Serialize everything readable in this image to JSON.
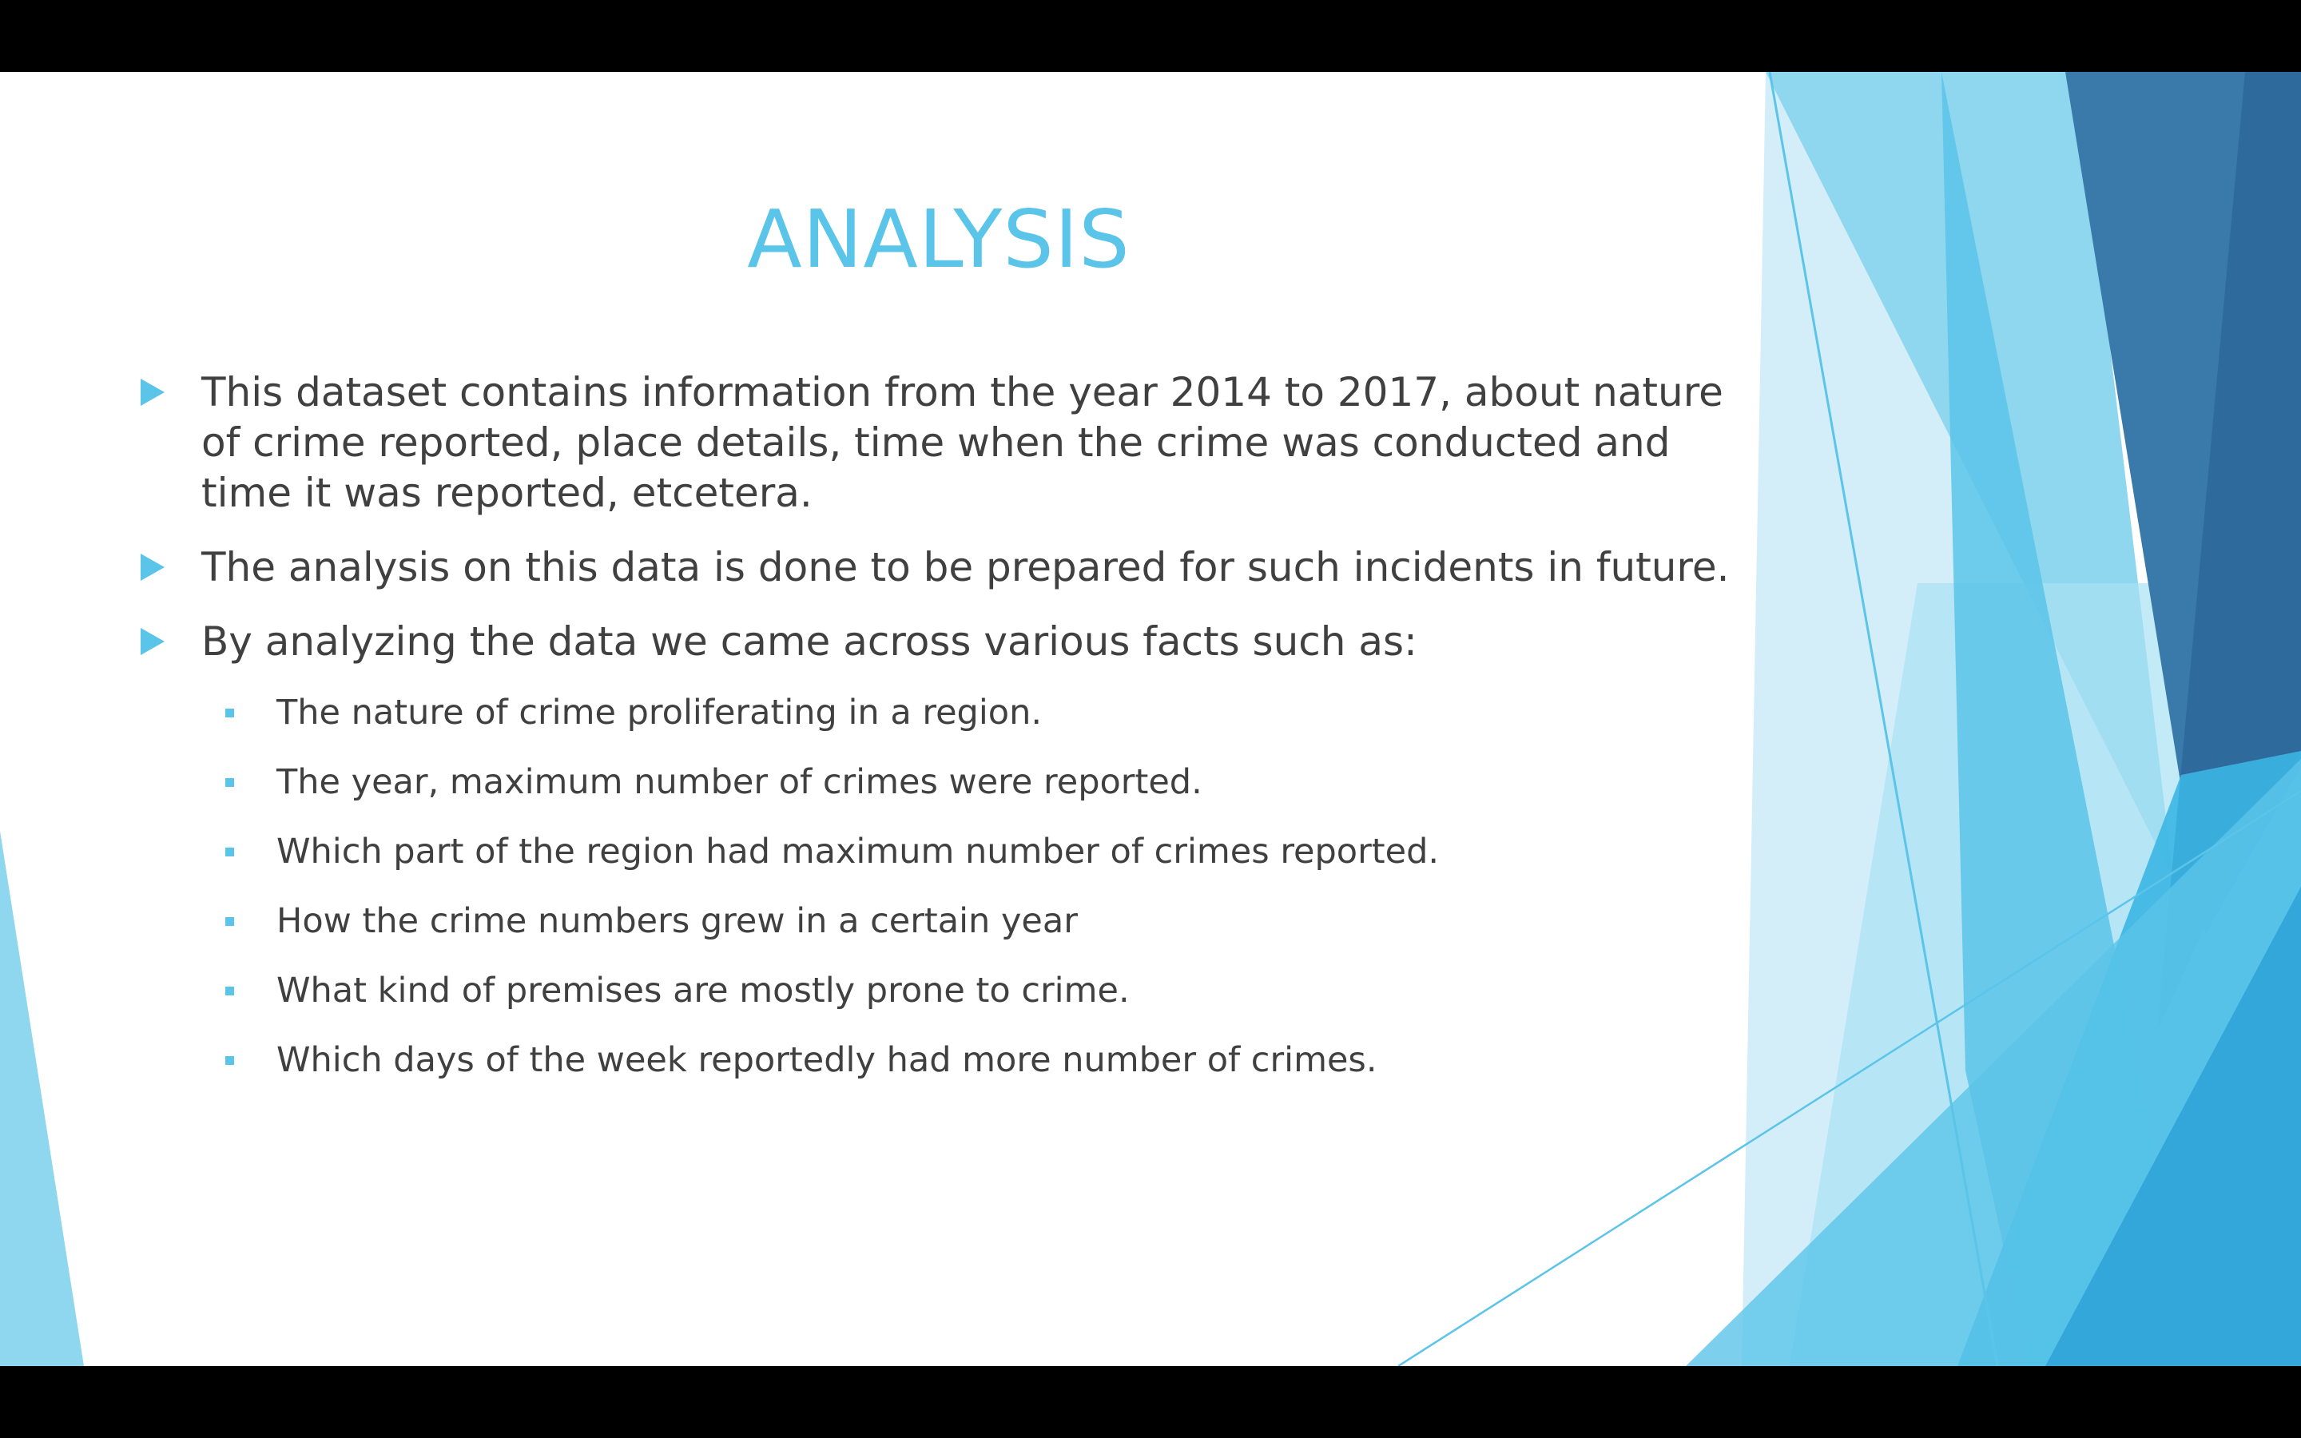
{
  "slide": {
    "title": "ANALYSIS",
    "bullets": [
      "This dataset contains information from the year 2014 to 2017, about nature of crime reported, place details, time when the crime was conducted and time it was reported, etcetera.",
      "The analysis on this data is done to be prepared for such incidents in future.",
      "By analyzing the data we came across various facts such as:"
    ],
    "sub_bullets": [
      "The nature of crime proliferating in a region.",
      "The year, maximum number of crimes were reported.",
      "Which part of the region had maximum number of crimes reported.",
      "How the crime numbers grew in a certain year",
      "What kind of premises are mostly prone to crime.",
      "Which days of the week reportedly had more number of crimes."
    ]
  },
  "colors": {
    "accent": "#5bc4e9",
    "text": "#404040",
    "letterbox": "#000000",
    "deep_blue": "#2e6a9b"
  }
}
